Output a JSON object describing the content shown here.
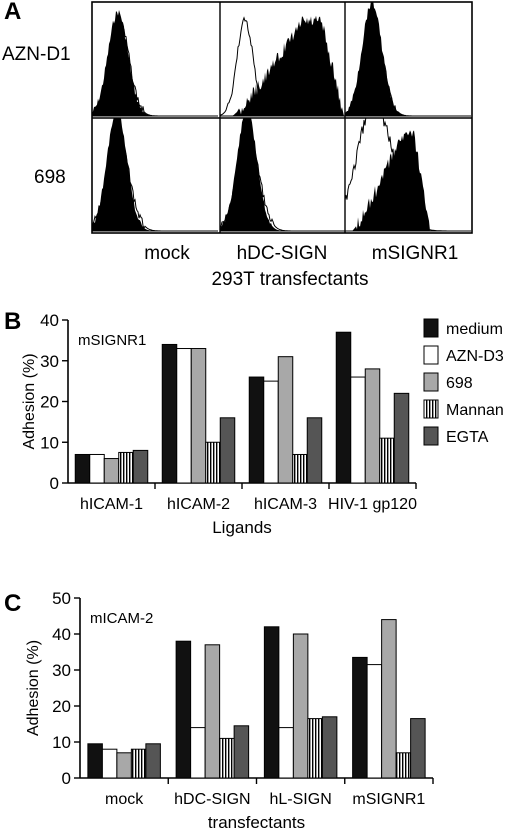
{
  "panel_a": {
    "letter": "A",
    "row_labels": [
      "AZN-D1",
      "698"
    ],
    "column_labels": [
      "mock",
      "hDC-SIGN",
      "mSIGNR1"
    ],
    "footer": "293T transfectants"
  },
  "chart_data": [
    {
      "type": "bar",
      "panel": "B",
      "inset_label": "mSIGNR1",
      "categories": [
        "hICAM-1",
        "hICAM-2",
        "hICAM-3",
        "HIV-1 gp120"
      ],
      "xlabel": "Ligands",
      "ylabel": "Adhesion (%)",
      "ylim": [
        0,
        40
      ],
      "yticks": [
        0,
        10,
        20,
        30,
        40
      ],
      "legend_position": "right",
      "series": [
        {
          "name": "medium",
          "values": [
            7,
            34,
            26,
            37
          ],
          "color": "#111111",
          "pattern": "solid"
        },
        {
          "name": "AZN-D3",
          "values": [
            7,
            33,
            25,
            26
          ],
          "color": "#ffffff",
          "pattern": "solid"
        },
        {
          "name": "698",
          "values": [
            6,
            33,
            31,
            28
          ],
          "color": "#a8a8a8",
          "pattern": "solid"
        },
        {
          "name": "Mannan",
          "values": [
            7.5,
            10,
            7,
            11
          ],
          "color": "#ffffff",
          "pattern": "vstripes"
        },
        {
          "name": "EGTA",
          "values": [
            8,
            16,
            16,
            22
          ],
          "color": "#555555",
          "pattern": "solid"
        }
      ]
    },
    {
      "type": "bar",
      "panel": "C",
      "inset_label": "mICAM-2",
      "categories": [
        "mock",
        "hDC-SIGN",
        "hL-SIGN",
        "mSIGNR1"
      ],
      "xlabel": "transfectants",
      "ylabel": "Adhesion (%)",
      "ylim": [
        0,
        50
      ],
      "yticks": [
        0,
        10,
        20,
        30,
        40,
        50
      ],
      "series": [
        {
          "name": "medium",
          "values": [
            9.5,
            38,
            42,
            33.5
          ],
          "color": "#111111",
          "pattern": "solid"
        },
        {
          "name": "AZN-D3",
          "values": [
            8,
            14,
            14,
            31.5
          ],
          "color": "#ffffff",
          "pattern": "solid"
        },
        {
          "name": "698",
          "values": [
            7,
            37,
            40,
            44
          ],
          "color": "#a8a8a8",
          "pattern": "solid"
        },
        {
          "name": "Mannan",
          "values": [
            8,
            11,
            16.5,
            7
          ],
          "color": "#ffffff",
          "pattern": "vstripes"
        },
        {
          "name": "EGTA",
          "values": [
            9.5,
            14.5,
            17,
            16.5
          ],
          "color": "#555555",
          "pattern": "solid"
        }
      ]
    }
  ]
}
